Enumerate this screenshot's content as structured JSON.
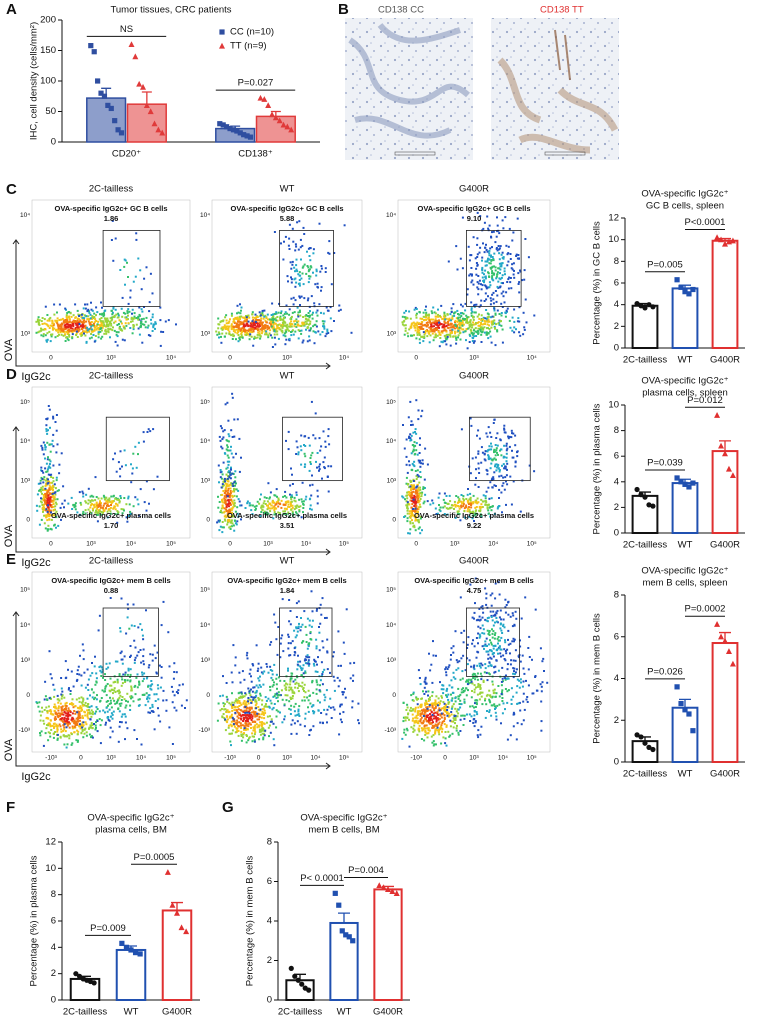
{
  "chart_data": [
    {
      "type": "grouped_bar",
      "label": "A",
      "title": "Tumor tissues, CRC patients",
      "ylabel": "IHC, cell density (cells/mm²)",
      "categories": [
        "CD20⁺",
        "CD138⁺"
      ],
      "ylim": [
        0,
        200
      ],
      "yticks": [
        0,
        50,
        100,
        150,
        200
      ],
      "annotations": [
        "NS",
        "P=0.027"
      ],
      "series": [
        {
          "name": "CC (n=10)",
          "color": "#2f4ea0",
          "values": [
            72,
            22
          ],
          "errors": [
            16,
            4
          ],
          "points": [
            [
              158,
              148,
              100,
              80,
              75,
              60,
              55,
              35,
              20,
              15
            ],
            [
              30,
              28,
              25,
              22,
              20,
              18,
              15,
              12,
              10,
              8
            ]
          ]
        },
        {
          "name": "TT (n=9)",
          "color": "#e03a3a",
          "values": [
            62,
            42
          ],
          "errors": [
            20,
            8
          ],
          "points": [
            [
              160,
              140,
              95,
              90,
              60,
              50,
              30,
              20,
              15
            ],
            [
              72,
              70,
              60,
              45,
              40,
              35,
              28,
              25,
              20
            ]
          ]
        }
      ]
    },
    {
      "type": "bar",
      "label": "C",
      "title": [
        "OVA-specific IgG2c⁺",
        "GC B cells, spleen"
      ],
      "ylabel": "Percentage (%) in GC B cells",
      "categories": [
        "2C-tailless",
        "WT",
        "G400R"
      ],
      "colors": [
        "#111111",
        "#2050b0",
        "#e03030"
      ],
      "values": [
        3.9,
        5.5,
        9.9
      ],
      "errors": [
        0.2,
        0.3,
        0.2
      ],
      "points": [
        [
          4.1,
          3.9,
          3.7,
          4.0,
          3.8
        ],
        [
          6.3,
          5.6,
          5.2,
          5.0,
          5.4
        ],
        [
          10.2,
          10.0,
          9.6,
          9.8,
          9.9
        ]
      ],
      "ylim": [
        0,
        12
      ],
      "yticks": [
        0,
        2,
        4,
        6,
        8,
        10,
        12
      ],
      "annotations": [
        "P=0.005",
        "P<0.0001"
      ]
    },
    {
      "type": "bar",
      "label": "D",
      "title": [
        "OVA-specific IgG2c⁺",
        "plasma cells, spleen"
      ],
      "ylabel": "Percentage (%) in plasma cells",
      "categories": [
        "2C-tailless",
        "WT",
        "G400R"
      ],
      "colors": [
        "#111111",
        "#2050b0",
        "#e03030"
      ],
      "values": [
        2.9,
        3.9,
        6.4
      ],
      "errors": [
        0.3,
        0.3,
        0.8
      ],
      "points": [
        [
          3.4,
          3.0,
          2.8,
          2.2,
          2.1
        ],
        [
          4.3,
          4.0,
          3.8,
          3.6,
          3.9
        ],
        [
          9.2,
          6.8,
          6.2,
          5.0,
          4.5
        ]
      ],
      "ylim": [
        0,
        10
      ],
      "yticks": [
        0,
        2,
        4,
        6,
        8,
        10
      ],
      "annotations": [
        "P=0.039",
        "P=0.012"
      ]
    },
    {
      "type": "bar",
      "label": "E",
      "title": [
        "OVA-specific IgG2c⁺",
        "mem B cells, spleen"
      ],
      "ylabel": "Percentage (%) in mem B cells",
      "categories": [
        "2C-tailless",
        "WT",
        "G400R"
      ],
      "colors": [
        "#111111",
        "#2050b0",
        "#e03030"
      ],
      "values": [
        1.0,
        2.6,
        5.7
      ],
      "errors": [
        0.2,
        0.4,
        0.5
      ],
      "points": [
        [
          1.3,
          1.2,
          0.9,
          0.7,
          0.6
        ],
        [
          3.6,
          2.8,
          2.5,
          2.3,
          1.5
        ],
        [
          6.6,
          6.0,
          5.8,
          5.3,
          4.7
        ]
      ],
      "ylim": [
        0,
        8
      ],
      "yticks": [
        0,
        2,
        4,
        6,
        8
      ],
      "annotations": [
        "P=0.026",
        "P=0.0002"
      ]
    },
    {
      "type": "bar",
      "label": "F",
      "title": [
        "OVA-specific IgG2c⁺",
        "plasma cells, BM"
      ],
      "ylabel": "Percentage (%) in plasma cells",
      "categories": [
        "2C-tailless",
        "WT",
        "G400R"
      ],
      "colors": [
        "#111111",
        "#2050b0",
        "#e03030"
      ],
      "values": [
        1.6,
        3.8,
        6.8
      ],
      "errors": [
        0.2,
        0.3,
        0.6
      ],
      "points": [
        [
          2.0,
          1.8,
          1.6,
          1.5,
          1.4,
          1.3
        ],
        [
          4.3,
          4.0,
          3.8,
          3.6,
          3.5
        ],
        [
          9.7,
          7.2,
          6.6,
          5.5,
          5.2
        ]
      ],
      "ylim": [
        0,
        12
      ],
      "yticks": [
        0,
        2,
        4,
        6,
        8,
        10,
        12
      ],
      "annotations": [
        "P=0.009",
        "P=0.0005"
      ]
    },
    {
      "type": "bar",
      "label": "G",
      "title": [
        "OVA-specific IgG2c⁺",
        "mem B cells, BM"
      ],
      "ylabel": "Percentage (%) in mem B cells",
      "categories": [
        "2C-tailless",
        "WT",
        "G400R"
      ],
      "colors": [
        "#111111",
        "#2050b0",
        "#e03030"
      ],
      "values": [
        1.0,
        3.9,
        5.6
      ],
      "errors": [
        0.3,
        0.5,
        0.15
      ],
      "points": [
        [
          1.6,
          1.2,
          1.0,
          0.8,
          0.6,
          0.5
        ],
        [
          5.4,
          4.8,
          3.5,
          3.3,
          3.2,
          3.0
        ],
        [
          5.8,
          5.7,
          5.6,
          5.5,
          5.4
        ]
      ],
      "ylim": [
        0,
        8
      ],
      "yticks": [
        0,
        2,
        4,
        6,
        8
      ],
      "annotations": [
        "P< 0.0001",
        "P=0.004"
      ]
    }
  ],
  "images": {
    "label": "B",
    "captions": [
      "CD138 CC",
      "CD138 TT"
    ]
  },
  "flow": {
    "columns": [
      "2C-tailless",
      "WT",
      "G400R"
    ],
    "ylabel": "OVA",
    "xlabel": "IgG2c",
    "rows": [
      {
        "gate": "OVA-specific IgG2c+ GC B cells",
        "values": [
          "1.86",
          "5.88",
          "9.10"
        ],
        "yticks": [
          "10⁴",
          "10³"
        ],
        "xticks": [
          "0",
          "10³",
          "10⁴"
        ]
      },
      {
        "gate": "OVA-specific IgG2c+ plasma cells",
        "values": [
          "1.70",
          "3.51",
          "9.22"
        ],
        "yticks": [
          "10⁵",
          "10⁴",
          "10³",
          "0"
        ],
        "xticks": [
          "0",
          "10³",
          "10⁴",
          "10⁵"
        ]
      },
      {
        "gate": "OVA-specific IgG2c+ mem B cells",
        "values": [
          "0.88",
          "1.84",
          "4.75"
        ],
        "yticks": [
          "10⁵",
          "10⁴",
          "10³",
          "0",
          "-10³"
        ],
        "xticks": [
          "-10³",
          "0",
          "10³",
          "10⁴",
          "10⁵"
        ]
      }
    ]
  }
}
